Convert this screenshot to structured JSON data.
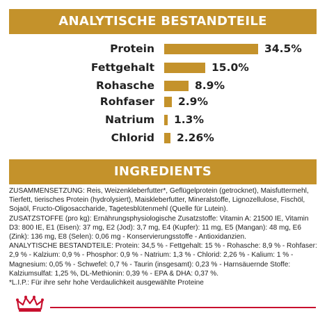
{
  "analysis_header": "ANALYTISCHE BESTANDTEILE",
  "ingredients_header": "INGREDIENTS",
  "bar_color": "#c4922b",
  "logo_color": "#c8102e",
  "nutrients": [
    {
      "label": "Protein",
      "value": "34.5%",
      "amount": 34.5
    },
    {
      "label": "Fettgehalt",
      "value": "15.0%",
      "amount": 15.0
    },
    {
      "label": "Rohasche",
      "value": "8.9%",
      "amount": 8.9
    },
    {
      "label": "Rohfaser",
      "value": "2.9%",
      "amount": 2.9
    },
    {
      "label": "Natrium",
      "value": "1.3%",
      "amount": 1.3
    },
    {
      "label": "Chlorid",
      "value": "2.26%",
      "amount": 2.26
    }
  ],
  "ingredients": {
    "composition": "ZUSAMMENSETZUNG: Reis, Weizenkleberfutter*, Geflügelprotein (getrocknet), Maisfuttermehl, Tierfett, tierisches Protein (hydrolysiert), Maiskleberfutter, Mineralstoffe, Lignozellulose, Fischöl, Sojaöl, Fructo-Oligosaccharide, Tagetesblütenmehl (Quelle für Lutein).",
    "additives": "ZUSATZSTOFFE (pro kg): Ernährungsphysiologische Zusatzstoffe: Vitamin A: 21500 IE, Vitamin D3: 800 IE, E1 (Eisen): 37 mg, E2 (Jod): 3,7 mg, E4 (Kupfer): 11 mg, E5 (Mangan): 48 mg, E6 (Zink): 136 mg, E8 (Selen): 0,06 mg - Konservierungsstoffe - Antioxidanzien.",
    "analytical": "ANALYTISCHE BESTANDTEILE: Protein: 34,5 % - Fettgehalt: 15 % - Rohasche: 8,9 % - Rohfaser: 2,9 % - Kalzium: 0,9 % - Phosphor: 0,9 % - Natrium: 1,3 % - Chlorid: 2,26 % - Kalium: 1 % - Magnesium: 0,05 % - Schwefel: 0,7 % - Taurin (insgesamt): 0,23 % - Harnsäuernde Stoffe: Kalziumsulfat: 1,25 %, DL-Methionin: 0,39 % - EPA & DHA: 0,37 %.",
    "footnote": "*L.I.P.: Für ihre sehr hohe Verdaulichkeit ausgewählte Proteine"
  }
}
